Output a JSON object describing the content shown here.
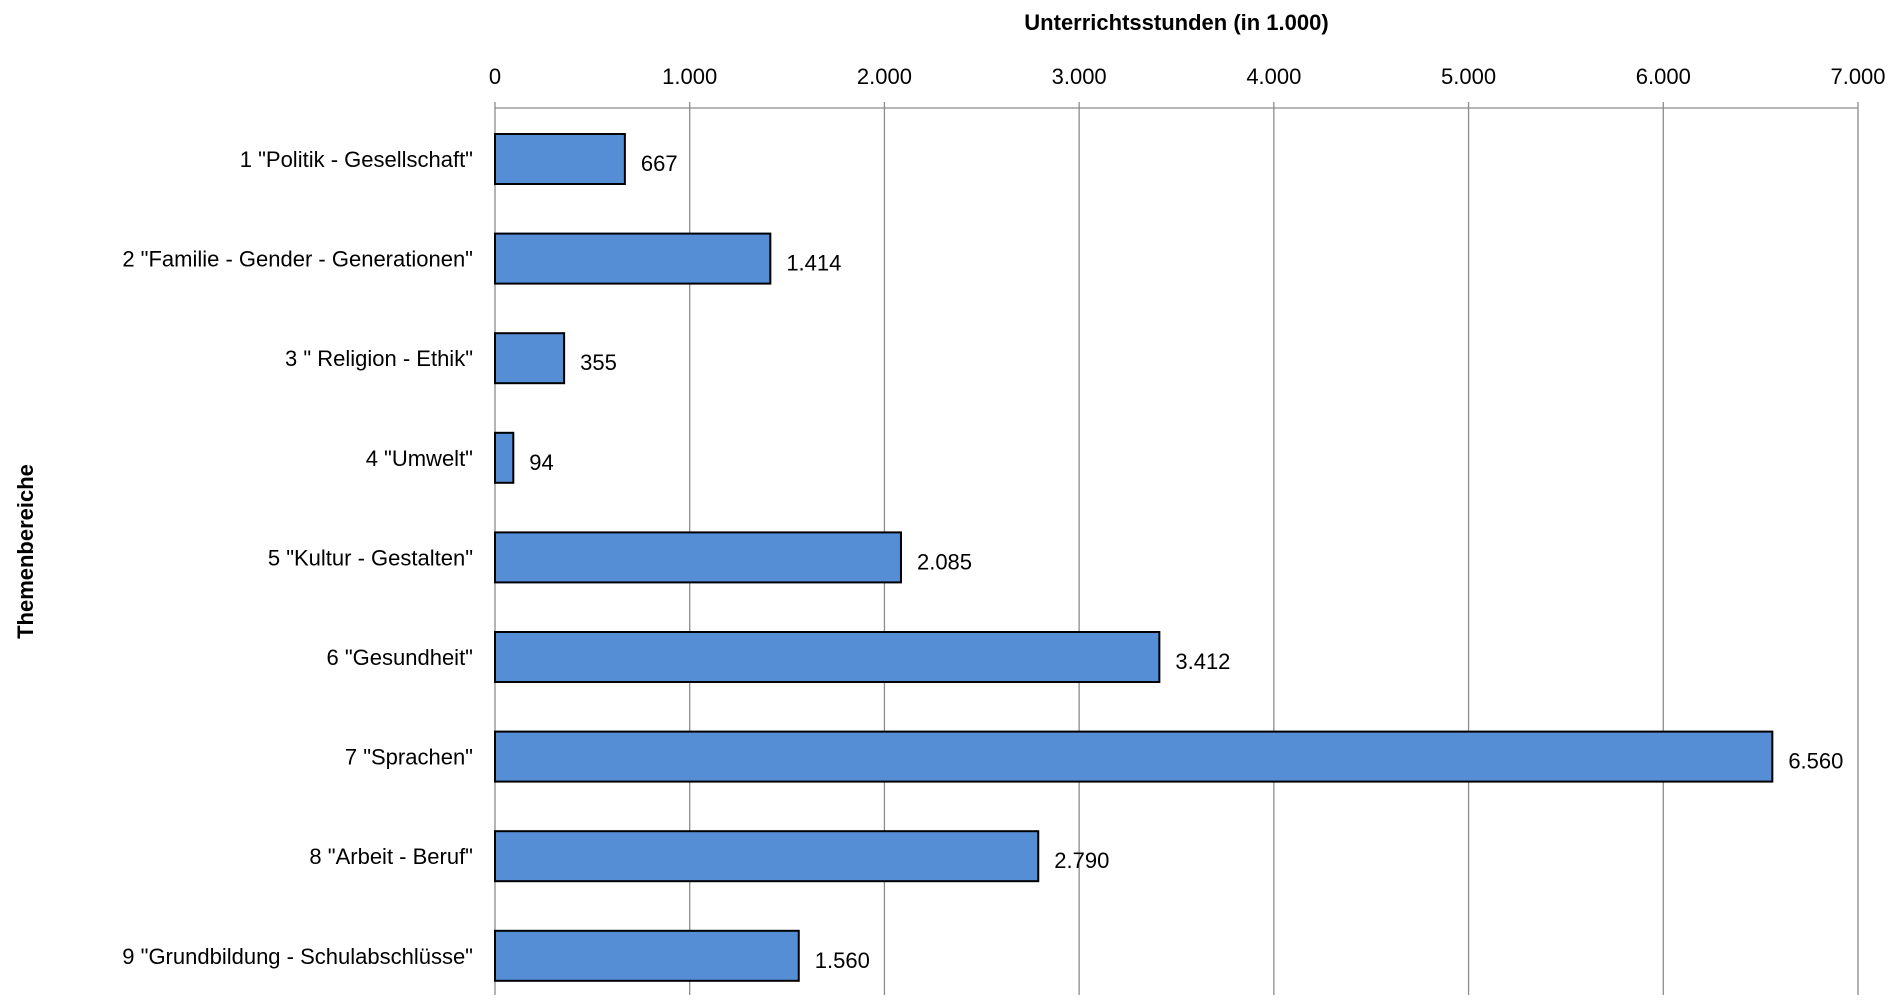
{
  "chart_data": {
    "type": "bar",
    "orientation": "horizontal",
    "title": "",
    "xlabel": "Unterrichtsstunden (in 1.000)",
    "ylabel": "Themenbereiche",
    "xlim": [
      0,
      7000
    ],
    "xticks": [
      0,
      1000,
      2000,
      3000,
      4000,
      5000,
      6000,
      7000
    ],
    "xtick_labels": [
      "0",
      "1.000",
      "2.000",
      "3.000",
      "4.000",
      "5.000",
      "6.000",
      "7.000"
    ],
    "x_axis_position": "top",
    "grid": true,
    "legend": "none",
    "bar_color": "#558ed5",
    "bar_edge_color": "#000000",
    "categories": [
      "1 \"Politik - Gesellschaft\"",
      "2 \"Familie - Gender - Generationen\"",
      "3 \" Religion - Ethik\"",
      "4 \"Umwelt\"",
      "5 \"Kultur - Gestalten\"",
      "6 \"Gesundheit\"",
      "7 \"Sprachen\"",
      "8 \"Arbeit - Beruf\"",
      "9 \"Grundbildung - Schulabschlüsse\""
    ],
    "values": [
      667,
      1414,
      355,
      94,
      2085,
      3412,
      6560,
      2790,
      1560
    ],
    "value_labels": [
      "667",
      "1.414",
      "355",
      "94",
      "2.085",
      "3.412",
      "6.560",
      "2.790",
      "1.560"
    ]
  }
}
